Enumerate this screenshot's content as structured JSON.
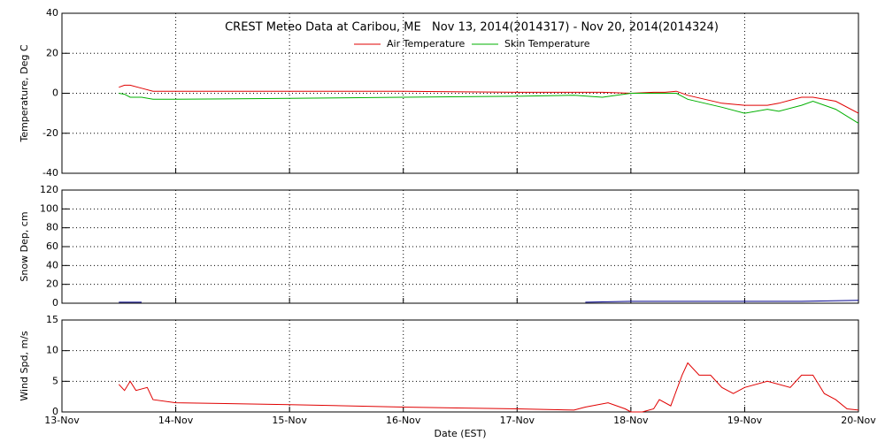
{
  "chart_data": [
    {
      "type": "line",
      "title": "CREST Meteo Data at Caribou, ME   Nov 13, 2014(2014317) - Nov 20, 2014(2014324)",
      "ylabel": "Temperature, Deg C",
      "ylim": [
        -40,
        40
      ],
      "yticks": [
        -40,
        -20,
        0,
        20,
        40
      ],
      "grid": true,
      "legend": "top",
      "xlim": [
        0,
        7
      ],
      "x": [
        0.5,
        0.55,
        0.6,
        0.7,
        0.8,
        1,
        2,
        3,
        4,
        4.5,
        4.75,
        5,
        5.2,
        5.3,
        5.4,
        5.5,
        5.8,
        6,
        6.2,
        6.3,
        6.5,
        6.6,
        6.8,
        7
      ],
      "series": [
        {
          "name": "Air Temperature",
          "color": "#e00000",
          "values": [
            3,
            4,
            4,
            2.5,
            1,
            1,
            1,
            1,
            0.5,
            0.5,
            0.5,
            0,
            0.5,
            0.5,
            1,
            -1,
            -5,
            -6,
            -6,
            -5,
            -2,
            -2,
            -4,
            -10
          ]
        },
        {
          "name": "Skin Temperature",
          "color": "#00b000",
          "values": [
            0,
            -0.5,
            -2,
            -2,
            -3,
            -3,
            -2.5,
            -2,
            -1.5,
            -1,
            -2,
            0,
            0,
            0,
            0,
            -3,
            -7,
            -10,
            -8,
            -9,
            -6,
            -4,
            -8,
            -15
          ]
        }
      ]
    },
    {
      "type": "line",
      "ylabel": "Snow Dep, cm",
      "ylim": [
        0,
        120
      ],
      "yticks": [
        0,
        20,
        40,
        60,
        80,
        100,
        120
      ],
      "grid": true,
      "xlim": [
        0,
        7
      ],
      "x": [
        0.5,
        0.7,
        0.75,
        4.6,
        5,
        5.5,
        6,
        6.5,
        7
      ],
      "series": [
        {
          "color": "#00008b",
          "values": [
            1,
            1,
            null,
            1,
            2,
            2,
            2,
            2,
            3
          ]
        }
      ]
    },
    {
      "type": "line",
      "ylabel": "Wind Spd, m/s",
      "xlabel": "Date (EST)",
      "ylim": [
        0,
        15
      ],
      "yticks": [
        0,
        5,
        10,
        15
      ],
      "grid": true,
      "xlim": [
        0,
        7
      ],
      "xticks": [
        {
          "value": 0,
          "label": "13-Nov"
        },
        {
          "value": 1,
          "label": "14-Nov"
        },
        {
          "value": 2,
          "label": "15-Nov"
        },
        {
          "value": 3,
          "label": "16-Nov"
        },
        {
          "value": 4,
          "label": "17-Nov"
        },
        {
          "value": 5,
          "label": "18-Nov"
        },
        {
          "value": 6,
          "label": "19-Nov"
        },
        {
          "value": 7,
          "label": "20-Nov"
        }
      ],
      "x": [
        0.5,
        0.55,
        0.6,
        0.65,
        0.75,
        0.8,
        1,
        2,
        3,
        4,
        4.5,
        4.6,
        4.8,
        4.95,
        5,
        5.1,
        5.2,
        5.25,
        5.35,
        5.45,
        5.5,
        5.6,
        5.7,
        5.8,
        5.9,
        6,
        6.2,
        6.4,
        6.5,
        6.6,
        6.7,
        6.8,
        6.9,
        7
      ],
      "series": [
        {
          "color": "#e00000",
          "values": [
            4.5,
            3.5,
            5,
            3.5,
            4,
            2,
            1.5,
            1.2,
            0.8,
            0.5,
            0.3,
            0.8,
            1.5,
            0.5,
            0,
            0,
            0.5,
            2,
            1,
            6,
            8,
            6,
            6,
            4,
            3,
            4,
            5,
            4,
            6,
            6,
            3,
            2,
            0.5,
            0.3
          ]
        }
      ]
    }
  ]
}
